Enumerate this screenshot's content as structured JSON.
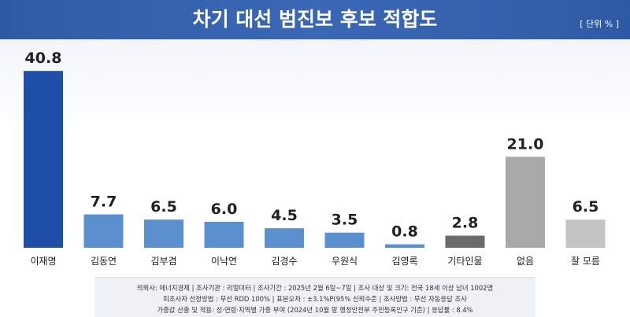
{
  "header": {
    "title": "차기 대선 범진보 후보 적합도",
    "unit": "[ 단위 % ]"
  },
  "chart_data": {
    "type": "bar",
    "title": "차기 대선 범진보 후보 적합도",
    "ylabel": "",
    "xlabel": "",
    "ylim": [
      0,
      45
    ],
    "categories": [
      "이재명",
      "김동연",
      "김부겸",
      "이낙연",
      "김경수",
      "우원식",
      "김영록",
      "기타인물",
      "없음",
      "잘 모름"
    ],
    "values": [
      40.8,
      7.7,
      6.5,
      6.0,
      4.5,
      3.5,
      0.8,
      2.8,
      21.0,
      6.5
    ],
    "value_labels": [
      "40.8",
      "7.7",
      "6.5",
      "6.0",
      "4.5",
      "3.5",
      "0.8",
      "2.8",
      "21.0",
      "6.5"
    ],
    "colors": [
      "#1f4fa8",
      "#5b90cf",
      "#5b90cf",
      "#5b90cf",
      "#5b90cf",
      "#5b90cf",
      "#5b90cf",
      "#6b6b6b",
      "#a9a9a9",
      "#c4c4c4"
    ],
    "grid": false,
    "legend": "none"
  },
  "footer": {
    "line1": "의뢰사: 에너지경제 | 조사기관 : 리얼미터  | 조사기간 : 2025년 2월 6일~7일 | 조사 대상 및 크기: 전국 18세 이상 남녀 1002명",
    "line2": "피조사자 선정방법 : 무선 RDD 100% | 표본오차 : ±3.1%P(95% 신뢰수준 | 조사방법 : 무선 자동응답 조사",
    "line3": "가중값 산출 및 적용: 성·연령·지역별 가중 부여 (2024년 10월 말 행정안전부 주민등록인구 기준) | 응답률 : 8.4%"
  }
}
